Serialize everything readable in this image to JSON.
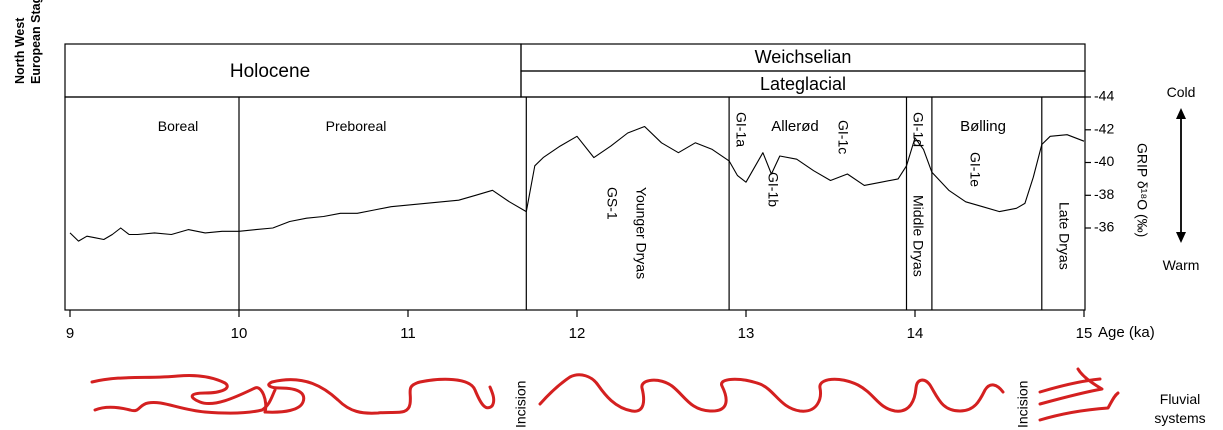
{
  "y_axis_title": [
    "North West",
    "European Stages"
  ],
  "stages": {
    "holocene": "Holocene",
    "weichselian": "Weichselian",
    "lateglacial": "Lateglacial"
  },
  "zones": [
    {
      "label": "Boreal"
    },
    {
      "label": "Preboreal"
    },
    {
      "label": "Allerød"
    },
    {
      "label": "Bølling"
    }
  ],
  "events": [
    {
      "label": "GS-1"
    },
    {
      "label": "Younger Dryas"
    },
    {
      "label": "GI-1a"
    },
    {
      "label": "GI-1b"
    },
    {
      "label": "GI-1c"
    },
    {
      "label": "GI-1d"
    },
    {
      "label": "Middle Dryas"
    },
    {
      "label": "GI-1e"
    },
    {
      "label": "Late Dryas"
    }
  ],
  "right_axis": {
    "title": "GRIP δ¹⁸O (‰)",
    "cold_label": "Cold",
    "warm_label": "Warm"
  },
  "fluvial": {
    "incision_label": "Incision",
    "label_line1": "Fluvial",
    "label_line2": "systems",
    "color": "#d42020"
  },
  "chart_data": {
    "type": "line",
    "title": "",
    "xlabel": "Age (ka)",
    "ylabel": "GRIP δ18O (‰)",
    "xlim": [
      9,
      15
    ],
    "ylim": [
      -44,
      -36
    ],
    "y_inverted": true,
    "xticks": [
      9,
      10,
      11,
      12,
      13,
      14,
      15
    ],
    "yticks": [
      -44,
      -42,
      -40,
      -38,
      -36
    ],
    "boundaries_ka": [
      10.0,
      11.7,
      12.9,
      13.95,
      14.1,
      14.75
    ],
    "series": [
      {
        "color": "#000000",
        "x": [
          9.0,
          9.05,
          9.1,
          9.15,
          9.2,
          9.25,
          9.3,
          9.35,
          9.4,
          9.5,
          9.6,
          9.7,
          9.8,
          9.9,
          10.0,
          10.1,
          10.2,
          10.3,
          10.4,
          10.5,
          10.6,
          10.7,
          10.8,
          10.9,
          11.0,
          11.1,
          11.2,
          11.3,
          11.4,
          11.5,
          11.6,
          11.7,
          11.75,
          11.8,
          11.9,
          12.0,
          12.1,
          12.2,
          12.3,
          12.4,
          12.5,
          12.6,
          12.7,
          12.8,
          12.9,
          12.95,
          13.0,
          13.1,
          13.15,
          13.2,
          13.3,
          13.4,
          13.5,
          13.6,
          13.7,
          13.8,
          13.9,
          13.95,
          14.0,
          14.05,
          14.1,
          14.2,
          14.3,
          14.4,
          14.5,
          14.6,
          14.65,
          14.7,
          14.75,
          14.8,
          14.9,
          15.0
        ],
        "y": [
          -35.7,
          -35.2,
          -35.5,
          -35.4,
          -35.3,
          -35.6,
          -36.0,
          -35.6,
          -35.6,
          -35.7,
          -35.6,
          -35.9,
          -35.7,
          -35.8,
          -35.8,
          -35.9,
          -36.0,
          -36.4,
          -36.6,
          -36.7,
          -36.9,
          -36.9,
          -37.1,
          -37.3,
          -37.4,
          -37.5,
          -37.6,
          -37.7,
          -38.0,
          -38.3,
          -37.6,
          -37.0,
          -39.8,
          -40.3,
          -41.0,
          -41.6,
          -40.3,
          -41.0,
          -41.8,
          -42.2,
          -41.2,
          -40.6,
          -41.2,
          -40.8,
          -40.1,
          -39.2,
          -38.8,
          -40.6,
          -39.3,
          -40.4,
          -40.2,
          -39.5,
          -38.9,
          -39.3,
          -38.6,
          -38.8,
          -39.0,
          -39.8,
          -41.5,
          -40.8,
          -39.4,
          -38.3,
          -37.6,
          -37.3,
          -37.0,
          -37.2,
          -37.5,
          -39.1,
          -41.1,
          -41.6,
          -41.7,
          -41.3
        ]
      }
    ]
  }
}
